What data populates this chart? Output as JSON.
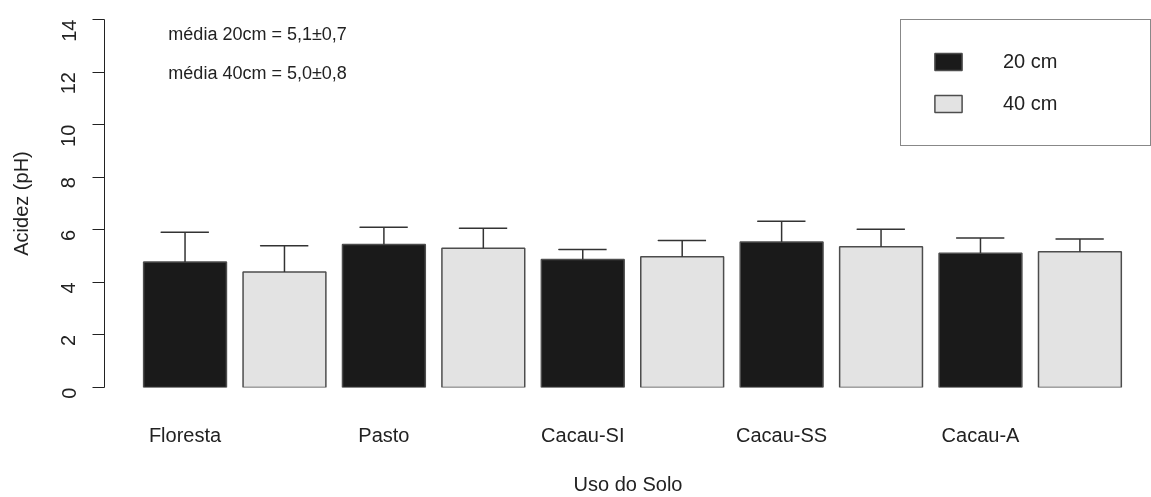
{
  "chart_data": {
    "type": "bar",
    "xlabel": "Uso do Solo",
    "ylabel": "Acidez (pH)",
    "categories": [
      "Floresta",
      "Pasto",
      "Cacau-SI",
      "Cacau-SS",
      "Cacau-A"
    ],
    "series": [
      {
        "name": "20 cm",
        "color": "#1a1a1a",
        "values": [
          4.77,
          5.44,
          4.87,
          5.54,
          5.11
        ],
        "errors": [
          [
            4.77,
            5.91
          ],
          [
            5.44,
            6.1
          ],
          [
            4.87,
            5.25
          ],
          [
            5.54,
            6.32
          ],
          [
            5.11,
            5.69
          ]
        ]
      },
      {
        "name": "40 cm",
        "color": "#e3e3e3",
        "values": [
          4.39,
          5.3,
          4.97,
          5.35,
          5.16
        ],
        "errors": [
          [
            4.39,
            5.39
          ],
          [
            5.3,
            6.06
          ],
          [
            4.97,
            5.59
          ],
          [
            5.35,
            6.02
          ],
          [
            5.16,
            5.65
          ]
        ]
      }
    ],
    "ylim": [
      0,
      14
    ],
    "yticks": [
      0,
      2,
      4,
      6,
      8,
      10,
      12,
      14
    ],
    "legend": "top right",
    "annotations": [
      "média 20cm = 5,1±0,7",
      "média 40cm = 5,0±0,8"
    ]
  }
}
